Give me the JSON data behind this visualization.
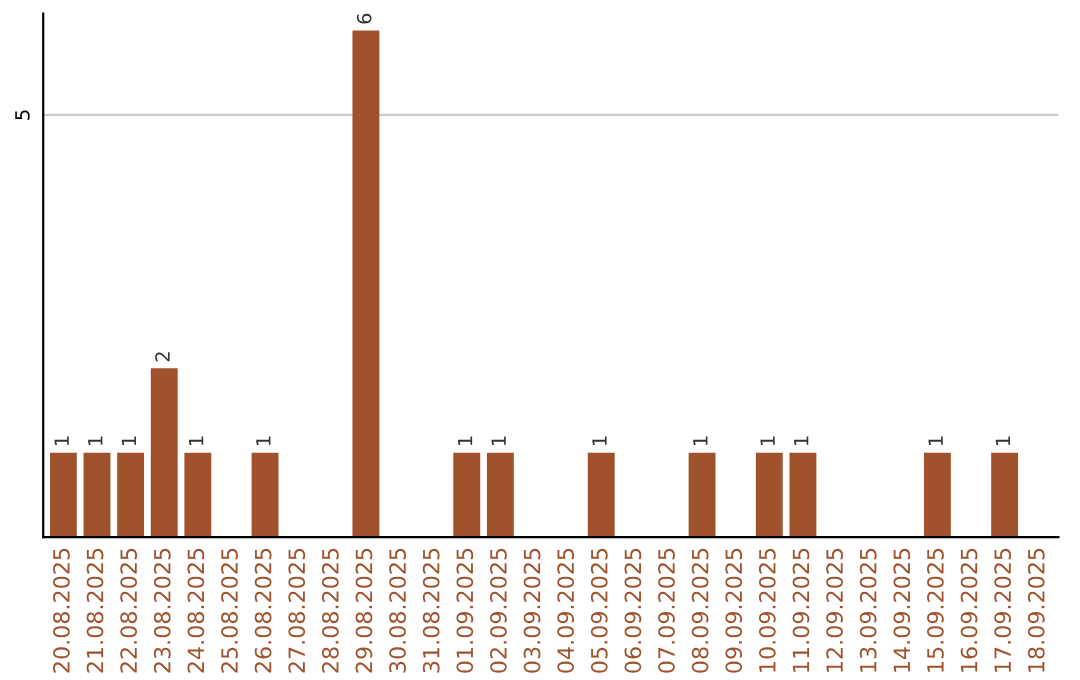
{
  "chart_data": {
    "type": "bar",
    "categories": [
      "20.08.2025",
      "21.08.2025",
      "22.08.2025",
      "23.08.2025",
      "24.08.2025",
      "25.08.2025",
      "26.08.2025",
      "27.08.2025",
      "28.08.2025",
      "29.08.2025",
      "30.08.2025",
      "31.08.2025",
      "01.09.2025",
      "02.09.2025",
      "03.09.2025",
      "04.09.2025",
      "05.09.2025",
      "06.09.2025",
      "07.09.2025",
      "08.09.2025",
      "09.09.2025",
      "10.09.2025",
      "11.09.2025",
      "12.09.2025",
      "13.09.2025",
      "14.09.2025",
      "15.09.2025",
      "16.09.2025",
      "17.09.2025",
      "18.09.2025"
    ],
    "values": [
      1,
      1,
      1,
      2,
      1,
      0,
      1,
      0,
      0,
      6,
      0,
      0,
      1,
      1,
      0,
      0,
      1,
      0,
      0,
      1,
      0,
      1,
      1,
      0,
      0,
      0,
      1,
      0,
      1,
      0
    ],
    "value_labels": [
      "1",
      "1",
      "1",
      "2",
      "1",
      null,
      "1",
      null,
      null,
      "6",
      null,
      null,
      "1",
      "1",
      null,
      null,
      "1",
      null,
      null,
      "1",
      null,
      "1",
      "1",
      null,
      null,
      null,
      "1",
      null,
      "1",
      null
    ],
    "color": "#a0522d",
    "ylim": [
      0,
      6.2
    ],
    "yticks": [
      5
    ],
    "grid": "y"
  }
}
